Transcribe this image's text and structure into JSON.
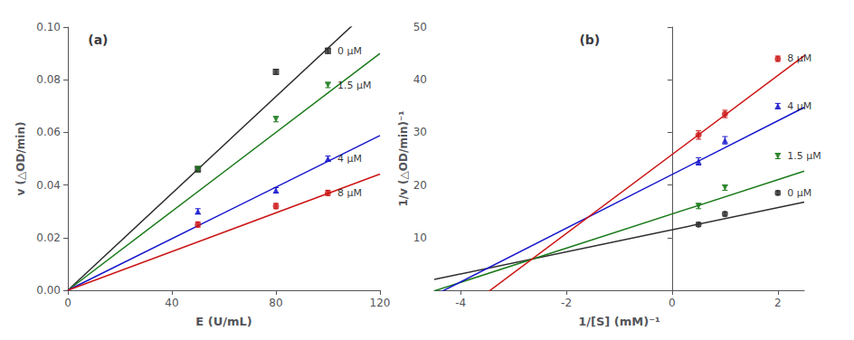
{
  "chart_data": [
    {
      "type": "scatter",
      "title": "(a)",
      "x_label": "E (U/mL)",
      "y_label": "v (△OD/min)",
      "xlim": [
        0,
        120
      ],
      "ylim": [
        0,
        0.1
      ],
      "xticks": [
        0,
        40,
        80,
        120
      ],
      "yticks": [
        {
          "value": 0,
          "label": "0.00"
        },
        {
          "value": 0.02,
          "label": "0.02"
        },
        {
          "value": 0.04,
          "label": "0.04"
        },
        {
          "value": 0.06,
          "label": "0.06"
        },
        {
          "value": 0.08,
          "label": "0.08"
        },
        {
          "value": 0.1,
          "label": "0.10"
        }
      ],
      "grid": false,
      "series": [
        {
          "name": "0 μM",
          "color": "#2d2d2d",
          "marker": "square",
          "x": [
            50,
            80,
            100
          ],
          "values": [
            0.046,
            0.083,
            0.091
          ],
          "yerr": [
            0.001,
            0.001,
            0.001
          ],
          "slope": 0.00092,
          "intercept": 0
        },
        {
          "name": "1.5 μM",
          "color": "#1a7a1a",
          "marker": "triangle-down",
          "x": [
            50,
            80,
            100
          ],
          "values": [
            0.046,
            0.065,
            0.078
          ],
          "yerr": [
            0.001,
            0.001,
            0.001
          ],
          "slope": 0.00075,
          "intercept": 0
        },
        {
          "name": "4 μM",
          "color": "#1515cc",
          "marker": "triangle-up",
          "x": [
            50,
            80,
            100
          ],
          "values": [
            0.03,
            0.038,
            0.05
          ],
          "yerr": [
            0.001,
            0.001,
            0.001
          ],
          "slope": 0.00049,
          "intercept": 0
        },
        {
          "name": "8 μM",
          "color": "#cc1515",
          "marker": "circle",
          "x": [
            50,
            80,
            100
          ],
          "values": [
            0.025,
            0.032,
            0.037
          ],
          "yerr": [
            0.001,
            0.001,
            0.001
          ],
          "slope": 0.000368,
          "intercept": 0
        }
      ]
    },
    {
      "type": "scatter",
      "title": "(b)",
      "x_label": "1/[S] (mM)⁻¹",
      "y_label": "1/v (△OD/min)⁻¹",
      "xlim": [
        -4.5,
        2.5
      ],
      "ylim": [
        0,
        50
      ],
      "xticks": [
        -4,
        -2,
        0,
        2
      ],
      "yticks": [
        10,
        20,
        30,
        40,
        50
      ],
      "grid": false,
      "series": [
        {
          "name": "0 μM",
          "color": "#2d2d2d",
          "marker": "circle",
          "x": [
            0.5,
            1.0,
            2.0
          ],
          "values": [
            12.5,
            14.5,
            18.5
          ],
          "yerr": [
            0.4,
            0.4,
            0.4
          ],
          "slope": 2.1,
          "intercept": 11.5
        },
        {
          "name": "1.5 μM",
          "color": "#1a7a1a",
          "marker": "triangle-down",
          "x": [
            0.5,
            1.0,
            2.0
          ],
          "values": [
            16.0,
            19.5,
            25.5
          ],
          "yerr": [
            0.5,
            0.5,
            0.5
          ],
          "slope": 3.25,
          "intercept": 14.5
        },
        {
          "name": "4 μM",
          "color": "#1515cc",
          "marker": "triangle-up",
          "x": [
            0.5,
            1.0,
            2.0
          ],
          "values": [
            24.5,
            28.5,
            35.0
          ],
          "yerr": [
            0.7,
            0.7,
            0.5
          ],
          "slope": 5.1,
          "intercept": 22.0
        },
        {
          "name": "8 μM",
          "color": "#cc1515",
          "marker": "circle",
          "x": [
            0.5,
            1.0,
            2.0
          ],
          "values": [
            29.5,
            33.5,
            44.0
          ],
          "yerr": [
            0.8,
            0.7,
            0.5
          ],
          "slope": 7.5,
          "intercept": 25.8
        }
      ]
    }
  ]
}
